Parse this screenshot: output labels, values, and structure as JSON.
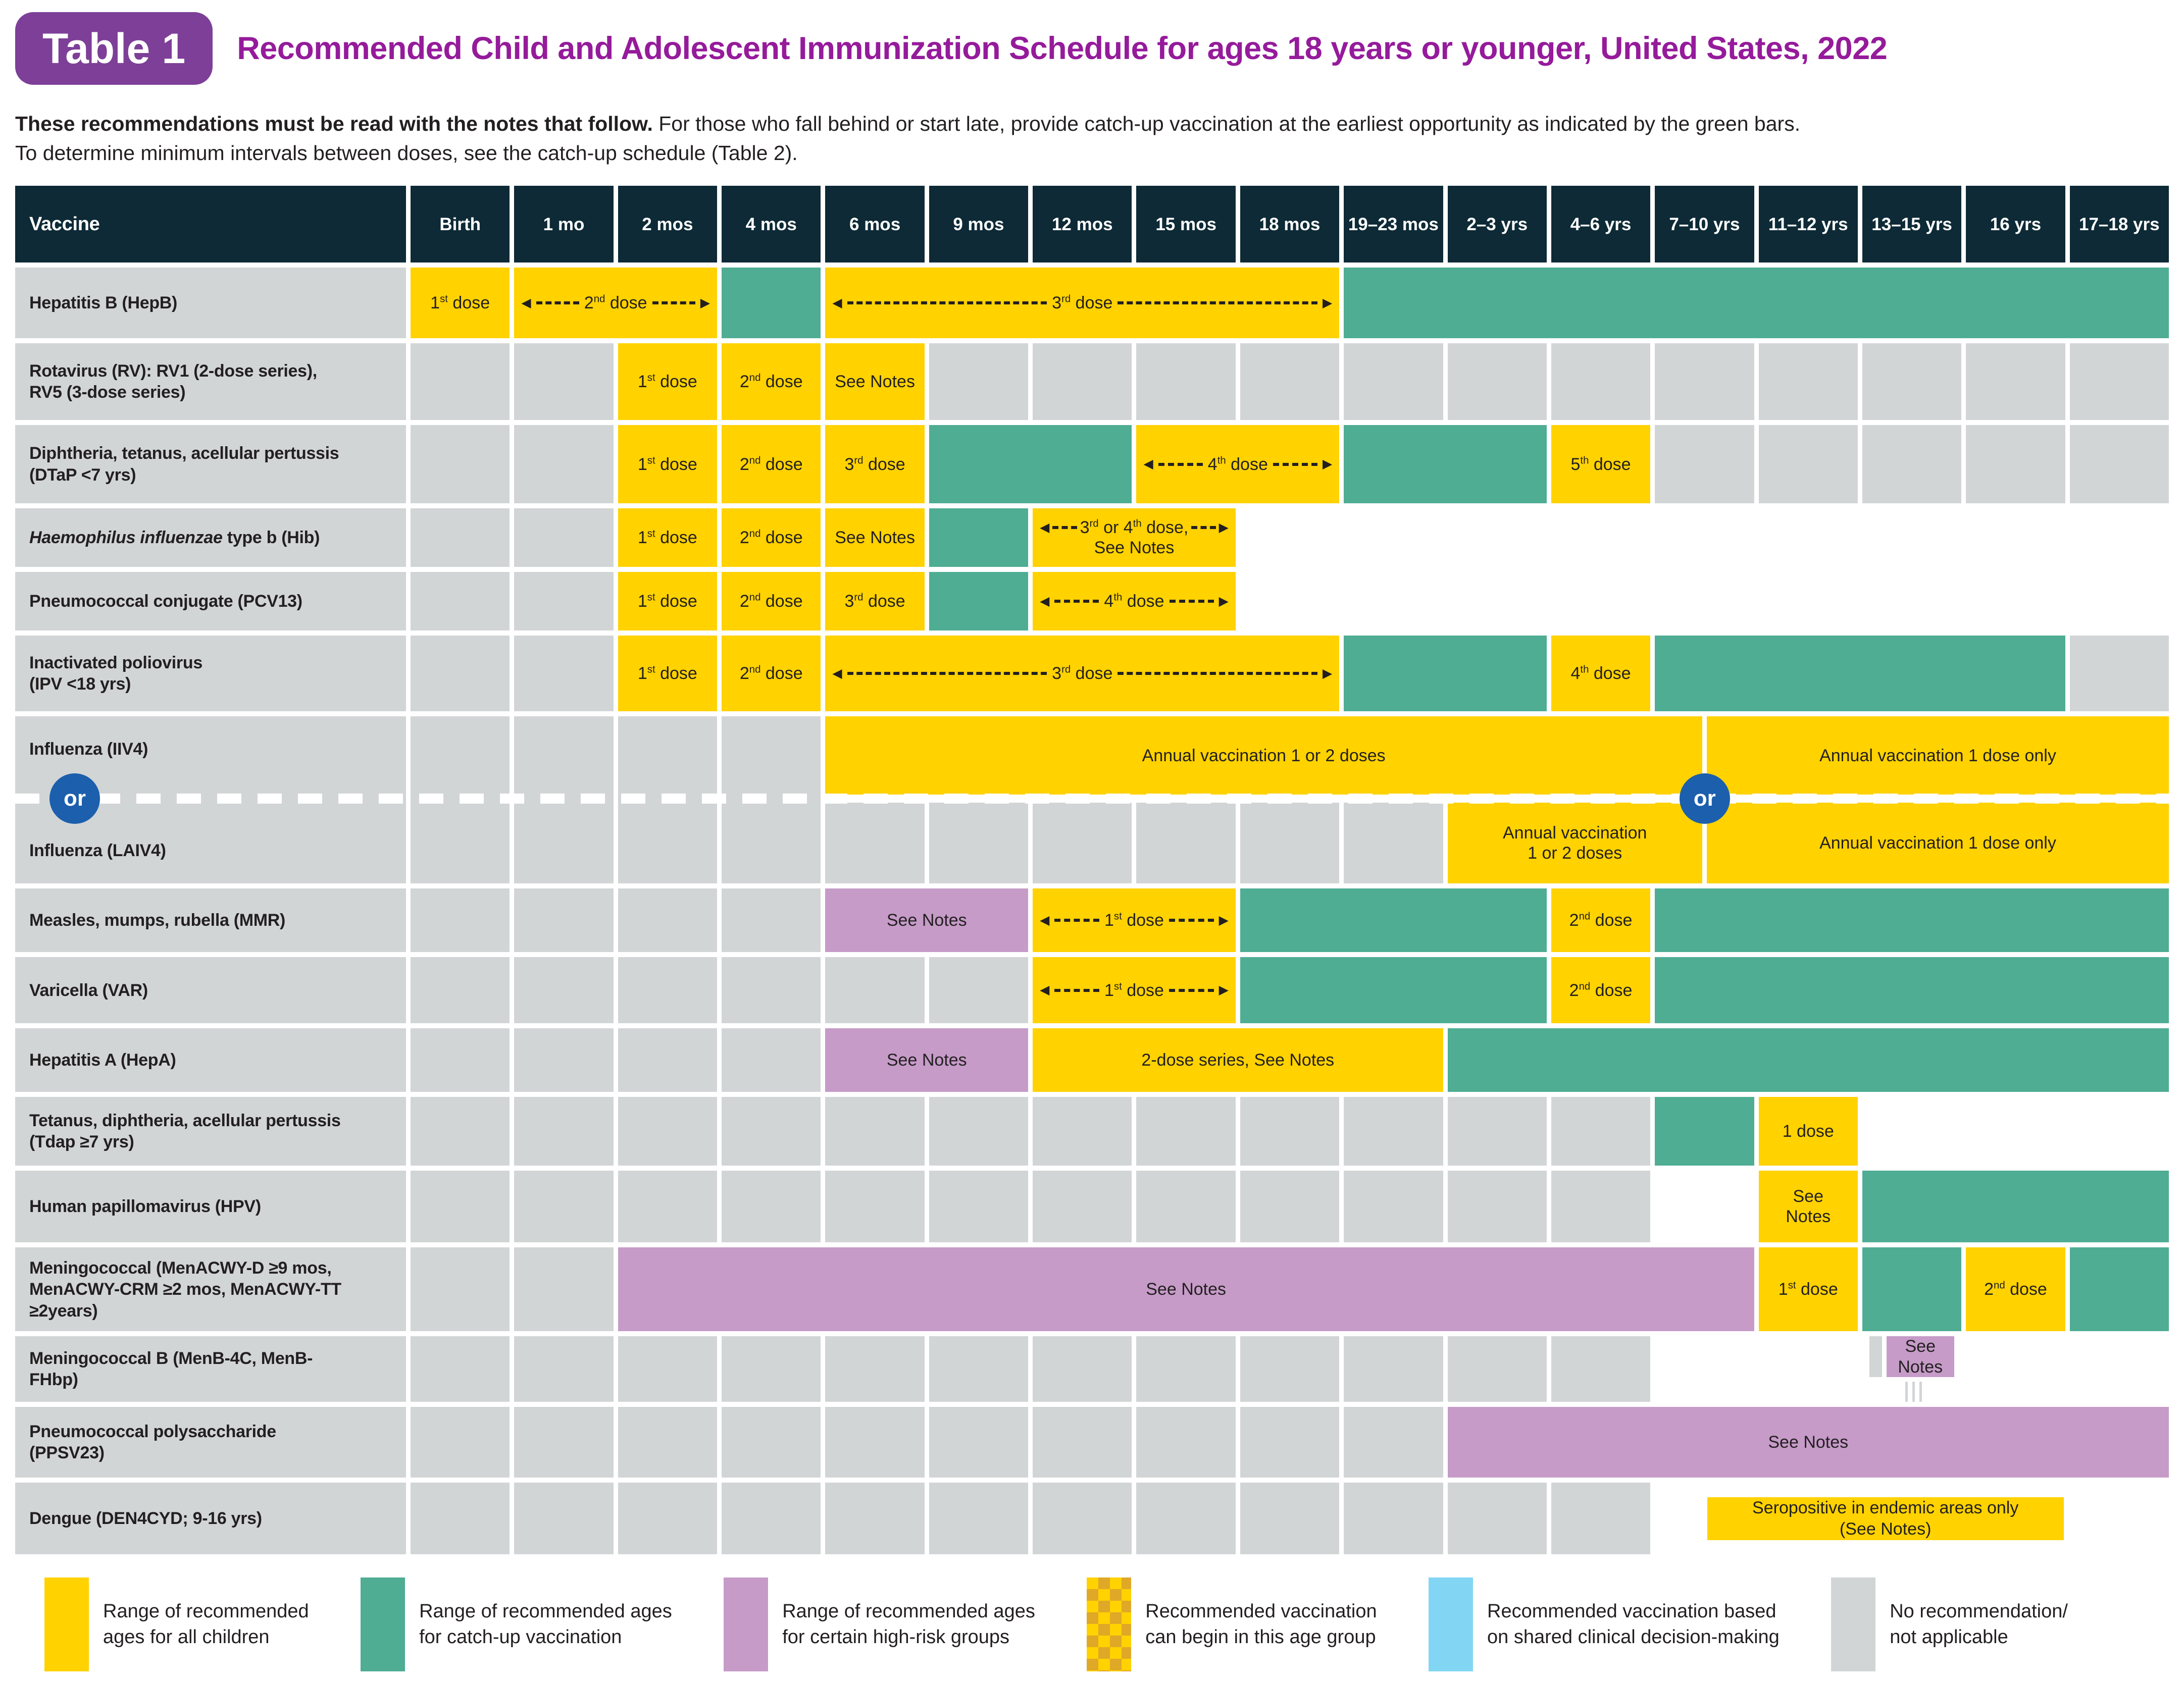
{
  "title_badge": "Table 1",
  "title": "Recommended Child and Adolescent Immunization Schedule for ages 18 years or younger, United States, 2022",
  "intro": {
    "bold": "These recommendations must be read with the notes that follow.",
    "rest": " For those who fall behind or start late, provide catch-up vaccination at the earliest opportunity as indicated by the green bars.",
    "line2": "To determine minimum intervals between doses, see the catch-up schedule (Table 2)."
  },
  "vaccine_header": "Vaccine",
  "columns": [
    "Birth",
    "1 mo",
    "2 mos",
    "4 mos",
    "6 mos",
    "9 mos",
    "12 mos",
    "15 mos",
    "18 mos",
    "19–23 mos",
    "2–3 yrs",
    "4–6 yrs",
    "7–10 yrs",
    "11–12 yrs",
    "13–15 yrs",
    "16 yrs",
    "17–18 yrs"
  ],
  "colors": {
    "navy": "#0D2A36",
    "yellow": "#FFD200",
    "teal": "#4EAD93",
    "purple": "#C69BC8",
    "blue": "#82D6F4",
    "gray": "#D2D5D6",
    "badge": "#7D3F98",
    "titlec": "#951B9B",
    "orblue": "#1C5FAC",
    "checkdark": "#DFA827"
  },
  "rows": [
    {
      "id": "hepb",
      "label_lines": [
        "Hepatitis B (HepB)"
      ],
      "cells": [
        {
          "span": 1,
          "c": "y",
          "t": "1st dose"
        },
        {
          "span": 2,
          "c": "y",
          "t": "2nd dose",
          "arrow": true
        },
        {
          "span": 1,
          "c": "t"
        },
        {
          "span": 5,
          "c": "y",
          "t": "3rd dose",
          "arrow": true
        },
        {
          "span": 8,
          "c": "t"
        }
      ]
    },
    {
      "id": "rota",
      "label_lines": [
        "Rotavirus (RV): RV1 (2-dose series),",
        "RV5 (3-dose series)"
      ],
      "cells": [
        {
          "span": 1,
          "c": "g"
        },
        {
          "span": 1,
          "c": "g"
        },
        {
          "span": 1,
          "c": "y",
          "t": "1st dose"
        },
        {
          "span": 1,
          "c": "y",
          "t": "2nd dose"
        },
        {
          "span": 1,
          "c": "y",
          "t": "See Notes"
        },
        {
          "span": 1,
          "c": "g"
        },
        {
          "span": 1,
          "c": "g"
        },
        {
          "span": 1,
          "c": "g"
        },
        {
          "span": 1,
          "c": "g"
        },
        {
          "span": 1,
          "c": "g"
        },
        {
          "span": 1,
          "c": "g"
        },
        {
          "span": 1,
          "c": "g"
        },
        {
          "span": 1,
          "c": "g"
        },
        {
          "span": 1,
          "c": "g"
        },
        {
          "span": 1,
          "c": "g"
        },
        {
          "span": 1,
          "c": "g"
        },
        {
          "span": 1,
          "c": "g"
        }
      ]
    },
    {
      "id": "dtap",
      "label_lines": [
        "Diphtheria, tetanus, acellular pertussis",
        "(DTaP <7 yrs)"
      ],
      "cells": [
        {
          "span": 1,
          "c": "g"
        },
        {
          "span": 1,
          "c": "g"
        },
        {
          "span": 1,
          "c": "y",
          "t": "1st dose"
        },
        {
          "span": 1,
          "c": "y",
          "t": "2nd dose"
        },
        {
          "span": 1,
          "c": "y",
          "t": "3rd dose"
        },
        {
          "span": 2,
          "c": "t"
        },
        {
          "span": 2,
          "c": "y",
          "t": "4th dose",
          "arrow": true
        },
        {
          "span": 2,
          "c": "t"
        },
        {
          "span": 1,
          "c": "y",
          "t": "5th dose"
        },
        {
          "span": 1,
          "c": "g"
        },
        {
          "span": 1,
          "c": "g"
        },
        {
          "span": 1,
          "c": "g"
        },
        {
          "span": 1,
          "c": "g"
        },
        {
          "span": 1,
          "c": "g"
        }
      ]
    },
    {
      "id": "hib",
      "label_italic": "Haemophilus influenzae",
      "label_rest": " type b (Hib)",
      "cells": [
        {
          "span": 1,
          "c": "g"
        },
        {
          "span": 1,
          "c": "g"
        },
        {
          "span": 1,
          "c": "y",
          "t": "1st dose"
        },
        {
          "span": 1,
          "c": "y",
          "t": "2nd dose"
        },
        {
          "span": 1,
          "c": "y",
          "t": "See Notes"
        },
        {
          "span": 1,
          "c": "t"
        },
        {
          "span": 2,
          "c": "y",
          "t": "3rd or 4th dose,",
          "t2": "See Notes",
          "arrow": true
        },
        {
          "span": 9,
          "special": "tailTP"
        }
      ]
    },
    {
      "id": "pcv13",
      "label_lines": [
        "Pneumococcal conjugate (PCV13)"
      ],
      "cells": [
        {
          "span": 1,
          "c": "g"
        },
        {
          "span": 1,
          "c": "g"
        },
        {
          "span": 1,
          "c": "y",
          "t": "1st dose"
        },
        {
          "span": 1,
          "c": "y",
          "t": "2nd dose"
        },
        {
          "span": 1,
          "c": "y",
          "t": "3rd dose"
        },
        {
          "span": 1,
          "c": "t"
        },
        {
          "span": 2,
          "c": "y",
          "t": "4th dose",
          "arrow": true
        },
        {
          "span": 9,
          "special": "tailTP"
        }
      ]
    },
    {
      "id": "ipv",
      "label_lines": [
        "Inactivated poliovirus",
        "(IPV <18 yrs)"
      ],
      "cells": [
        {
          "span": 1,
          "c": "g"
        },
        {
          "span": 1,
          "c": "g"
        },
        {
          "span": 1,
          "c": "y",
          "t": "1st dose"
        },
        {
          "span": 1,
          "c": "y",
          "t": "2nd dose"
        },
        {
          "span": 5,
          "c": "y",
          "t": "3rd dose",
          "arrow": true
        },
        {
          "span": 2,
          "c": "t"
        },
        {
          "span": 1,
          "c": "y",
          "t": "4th dose"
        },
        {
          "span": 4,
          "c": "t"
        },
        {
          "span": 1,
          "c": "g"
        }
      ]
    },
    {
      "id": "flu",
      "type": "flu",
      "label_top": "Influenza (IIV4)",
      "label_bottom": "Influenza (LAIV4)",
      "or_label": "or",
      "top_cells": [
        {
          "units": 17,
          "t": "Annual vaccination 1 or 2 doses"
        },
        {
          "units": 9,
          "t": "Annual vaccination 1 dose only"
        }
      ],
      "bottom_cells": [
        {
          "units": 2,
          "c": "g"
        },
        {
          "units": 2,
          "c": "g"
        },
        {
          "units": 2,
          "c": "g"
        },
        {
          "units": 2,
          "c": "g"
        },
        {
          "units": 2,
          "c": "g"
        },
        {
          "units": 2,
          "c": "g"
        },
        {
          "units": 5,
          "c": "y",
          "t": "Annual vaccination",
          "t2": "1 or 2 doses"
        },
        {
          "units": 9,
          "c": "y",
          "t": "Annual vaccination 1 dose only"
        }
      ]
    },
    {
      "id": "mmr",
      "label_lines": [
        "Measles, mumps, rubella (MMR)"
      ],
      "cells": [
        {
          "span": 1,
          "c": "g"
        },
        {
          "span": 1,
          "c": "g"
        },
        {
          "span": 1,
          "c": "g"
        },
        {
          "span": 1,
          "c": "g"
        },
        {
          "span": 2,
          "c": "p",
          "t": "See Notes"
        },
        {
          "span": 2,
          "c": "y",
          "t": "1st dose",
          "arrow": true
        },
        {
          "span": 3,
          "c": "t"
        },
        {
          "span": 1,
          "c": "y",
          "t": "2nd dose"
        },
        {
          "span": 5,
          "c": "t"
        }
      ]
    },
    {
      "id": "var",
      "label_lines": [
        "Varicella (VAR)"
      ],
      "cells": [
        {
          "span": 1,
          "c": "g"
        },
        {
          "span": 1,
          "c": "g"
        },
        {
          "span": 1,
          "c": "g"
        },
        {
          "span": 1,
          "c": "g"
        },
        {
          "span": 1,
          "c": "g"
        },
        {
          "span": 1,
          "c": "g"
        },
        {
          "span": 2,
          "c": "y",
          "t": "1st dose",
          "arrow": true
        },
        {
          "span": 3,
          "c": "t"
        },
        {
          "span": 1,
          "c": "y",
          "t": "2nd dose"
        },
        {
          "span": 5,
          "c": "t"
        }
      ]
    },
    {
      "id": "hepa",
      "label_lines": [
        "Hepatitis A (HepA)"
      ],
      "cells": [
        {
          "span": 1,
          "c": "g"
        },
        {
          "span": 1,
          "c": "g"
        },
        {
          "span": 1,
          "c": "g"
        },
        {
          "span": 1,
          "c": "g"
        },
        {
          "span": 2,
          "c": "p",
          "t": "See Notes"
        },
        {
          "span": 4,
          "c": "y",
          "t": "2-dose series, See Notes"
        },
        {
          "span": 7,
          "c": "t"
        }
      ]
    },
    {
      "id": "tdap",
      "label_lines": [
        "Tetanus, diphtheria, acellular pertussis",
        "(Tdap ≥7 yrs)"
      ],
      "cells": [
        {
          "span": 1,
          "c": "g"
        },
        {
          "span": 1,
          "c": "g"
        },
        {
          "span": 1,
          "c": "g"
        },
        {
          "span": 1,
          "c": "g"
        },
        {
          "span": 1,
          "c": "g"
        },
        {
          "span": 1,
          "c": "g"
        },
        {
          "span": 1,
          "c": "g"
        },
        {
          "span": 1,
          "c": "g"
        },
        {
          "span": 1,
          "c": "g"
        },
        {
          "span": 1,
          "c": "g"
        },
        {
          "span": 1,
          "c": "g"
        },
        {
          "span": 1,
          "c": "g"
        },
        {
          "span": 1,
          "c": "t"
        },
        {
          "span": 1,
          "c": "y",
          "t": "1 dose"
        },
        {
          "span": 3,
          "special": "splitPT"
        }
      ]
    },
    {
      "id": "hpv",
      "label_lines": [
        "Human papillomavirus (HPV)"
      ],
      "cells": [
        {
          "span": 1,
          "c": "g"
        },
        {
          "span": 1,
          "c": "g"
        },
        {
          "span": 1,
          "c": "g"
        },
        {
          "span": 1,
          "c": "g"
        },
        {
          "span": 1,
          "c": "g"
        },
        {
          "span": 1,
          "c": "g"
        },
        {
          "span": 1,
          "c": "g"
        },
        {
          "span": 1,
          "c": "g"
        },
        {
          "span": 1,
          "c": "g"
        },
        {
          "span": 1,
          "c": "g"
        },
        {
          "span": 1,
          "c": "g"
        },
        {
          "span": 1,
          "c": "g"
        },
        {
          "span": 1,
          "special": "hpv"
        },
        {
          "span": 1,
          "c": "y",
          "t": "See",
          "t2": "Notes"
        },
        {
          "span": 3,
          "c": "t"
        }
      ]
    },
    {
      "id": "menacwy",
      "label_lines": [
        "Meningococcal (MenACWY-D ≥9 mos,",
        "MenACWY-CRM ≥2 mos,  MenACWY-TT",
        "≥2years)"
      ],
      "cells": [
        {
          "span": 1,
          "c": "g"
        },
        {
          "span": 1,
          "c": "g"
        },
        {
          "span": 11,
          "c": "p",
          "t": "See Notes"
        },
        {
          "span": 1,
          "c": "y",
          "t": "1st dose"
        },
        {
          "span": 1,
          "c": "t"
        },
        {
          "span": 1,
          "c": "y",
          "t": "2nd dose"
        },
        {
          "span": 1,
          "c": "t"
        }
      ]
    },
    {
      "id": "menb",
      "label_lines": [
        "Meningococcal B (MenB-4C, MenB-",
        "FHbp)"
      ],
      "cells": [
        {
          "span": 1,
          "c": "g"
        },
        {
          "span": 1,
          "c": "g"
        },
        {
          "span": 1,
          "c": "g"
        },
        {
          "span": 1,
          "c": "g"
        },
        {
          "span": 1,
          "c": "g"
        },
        {
          "span": 1,
          "c": "g"
        },
        {
          "span": 1,
          "c": "g"
        },
        {
          "span": 1,
          "c": "g"
        },
        {
          "span": 1,
          "c": "g"
        },
        {
          "span": 1,
          "c": "g"
        },
        {
          "span": 1,
          "c": "g"
        },
        {
          "span": 1,
          "c": "g"
        },
        {
          "span": 5,
          "special": "menb",
          "t": "See Notes"
        }
      ]
    },
    {
      "id": "ppsv23",
      "label_lines": [
        "Pneumococcal polysaccharide",
        "(PPSV23)"
      ],
      "cells": [
        {
          "span": 1,
          "c": "g"
        },
        {
          "span": 1,
          "c": "g"
        },
        {
          "span": 1,
          "c": "g"
        },
        {
          "span": 1,
          "c": "g"
        },
        {
          "span": 1,
          "c": "g"
        },
        {
          "span": 1,
          "c": "g"
        },
        {
          "span": 1,
          "c": "g"
        },
        {
          "span": 1,
          "c": "g"
        },
        {
          "span": 1,
          "c": "g"
        },
        {
          "span": 1,
          "c": "g"
        },
        {
          "span": 7,
          "c": "p",
          "t": "See Notes"
        }
      ]
    },
    {
      "id": "dengue",
      "label_lines": [
        "Dengue (DEN4CYD; 9-16 yrs)"
      ],
      "cells": [
        {
          "span": 1,
          "c": "g"
        },
        {
          "span": 1,
          "c": "g"
        },
        {
          "span": 1,
          "c": "g"
        },
        {
          "span": 1,
          "c": "g"
        },
        {
          "span": 1,
          "c": "g"
        },
        {
          "span": 1,
          "c": "g"
        },
        {
          "span": 1,
          "c": "g"
        },
        {
          "span": 1,
          "c": "g"
        },
        {
          "span": 1,
          "c": "g"
        },
        {
          "span": 1,
          "c": "g"
        },
        {
          "span": 1,
          "c": "g"
        },
        {
          "span": 1,
          "c": "g"
        },
        {
          "span": 5,
          "special": "dengue",
          "t": "Seropositive in endemic areas only",
          "t2": "(See Notes)"
        }
      ]
    }
  ],
  "legend": [
    {
      "swatch": "yellow",
      "line1": "Range of recommended",
      "line2": "ages for all children"
    },
    {
      "swatch": "teal",
      "line1": "Range of recommended ages",
      "line2": "for catch-up vaccination"
    },
    {
      "swatch": "purple",
      "line1": "Range of recommended ages",
      "line2": "for certain high-risk groups"
    },
    {
      "swatch": "checker",
      "line1": "Recommended vaccination",
      "line2": "can begin in this age group"
    },
    {
      "swatch": "blue",
      "line1": "Recommended vaccination based",
      "line2": "on shared clinical decision-making"
    },
    {
      "swatch": "gray",
      "line1": "No recommendation/",
      "line2": "not applicable"
    }
  ]
}
